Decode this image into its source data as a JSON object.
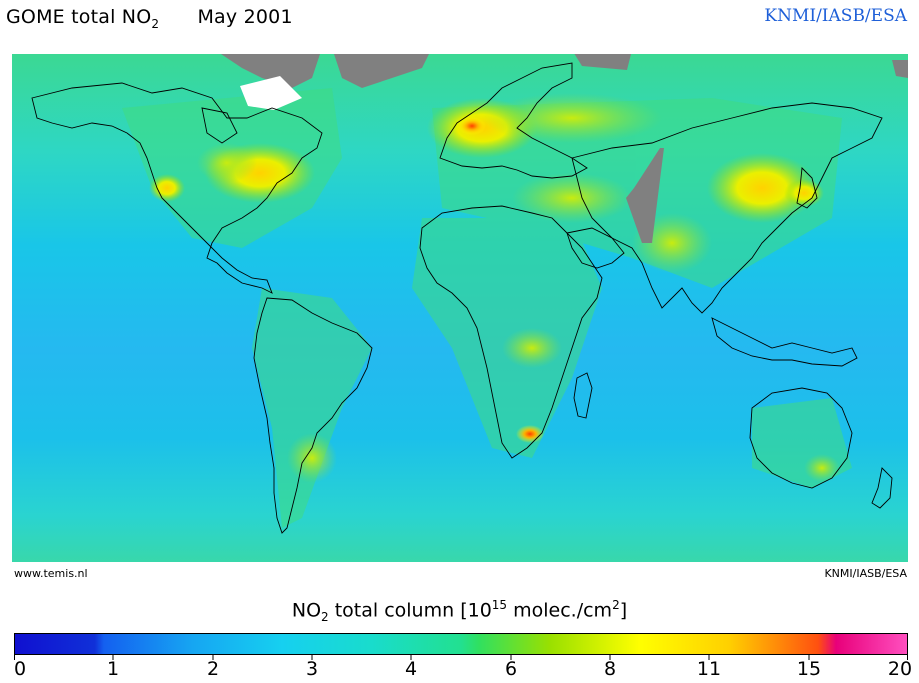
{
  "header": {
    "title_prefix": "GOME total NO",
    "title_sub": "2",
    "date": "May 2001",
    "credit": "KNMI/IASB/ESA"
  },
  "map": {
    "watermark_left": "www.temis.nl",
    "watermark_right": "KNMI/IASB/ESA",
    "ocean_gradient_colors": [
      "#3cd890",
      "#2ed7c4",
      "#19c6e8",
      "#25b9f0",
      "#1cc0ea",
      "#2ad4d0",
      "#3ad8a6"
    ],
    "no_data_color": "#808080"
  },
  "colorbar": {
    "label_a": "NO",
    "label_sub": "2",
    "label_b": " total column [10",
    "label_sup": "15",
    "label_c": " molec./cm",
    "label_sup2": "2",
    "label_d": "]",
    "ticks": [
      "0",
      "1",
      "2",
      "3",
      "4",
      "6",
      "8",
      "11",
      "15",
      "20"
    ],
    "colors": [
      "#1010d0",
      "#1460f0",
      "#16a6f2",
      "#16d0f0",
      "#19dccc",
      "#22e090",
      "#30e060",
      "#9ae000",
      "#ffff00",
      "#ffd000",
      "#ff8000",
      "#ff3010",
      "#e8007a",
      "#ff50c0"
    ]
  }
}
